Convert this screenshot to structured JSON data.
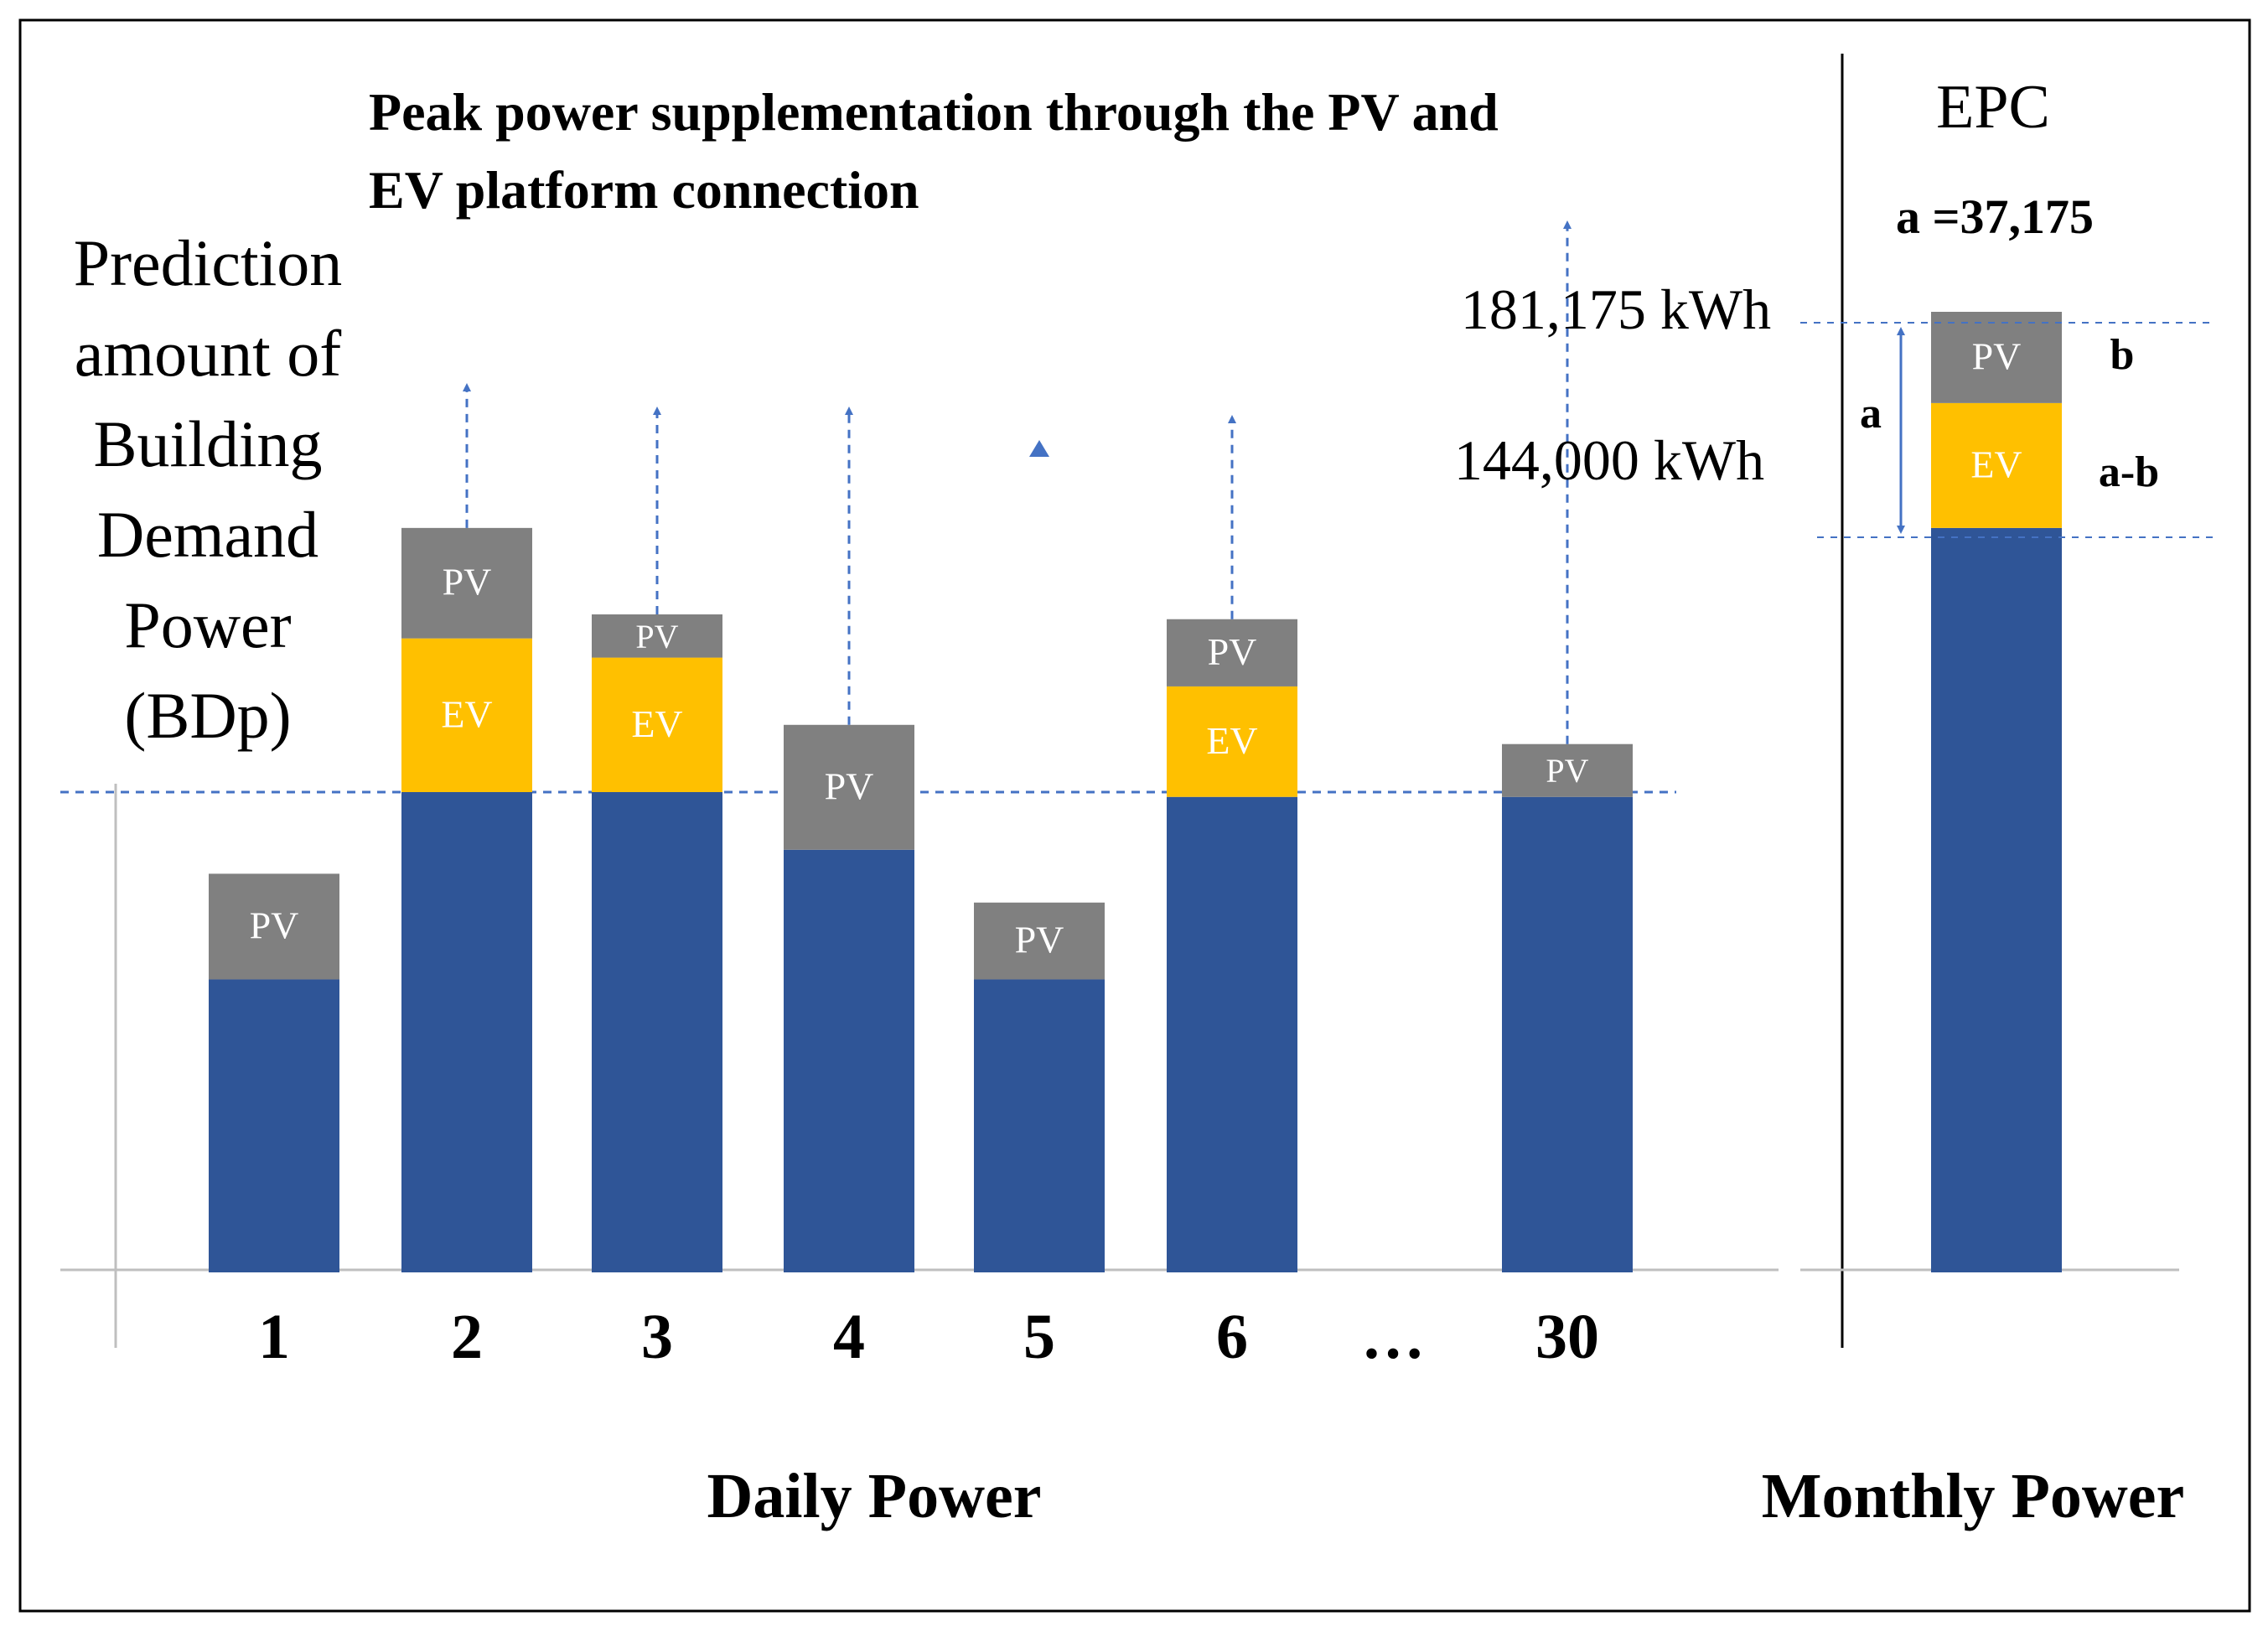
{
  "title": "Peak power supplementation through the PV and EV platform connection",
  "y_axis_label": [
    "Prediction",
    "amount of",
    "Building",
    "Demand",
    "Power",
    "(BDp)"
  ],
  "daily_section_label": "Daily Power",
  "monthly_section_label": "Monthly Power",
  "ellipsis": "…",
  "epc": {
    "heading": "EPC",
    "value_label": "a =37,175",
    "a_label": "a",
    "b_label": "b",
    "a_minus_b_label": "a-b"
  },
  "reference_lines": {
    "upper_label": "181,175 kWh",
    "lower_label": "144,000 kWh"
  },
  "segment_labels": {
    "pv": "PV",
    "ev": "EV"
  },
  "colors": {
    "base": "#2f5597",
    "ev": "#ffc000",
    "pv": "#808080",
    "arrow": "#4472c4",
    "axis": "#bfbfbf",
    "text": "#000000"
  },
  "chart_data": {
    "type": "bar",
    "stacked": true,
    "title": "Peak power supplementation through the PV and EV platform connection",
    "ylabel": "Prediction amount of Building Demand Power (BDp)",
    "xlabel": "Daily Power",
    "units": "relative (peak threshold line = 1.00)",
    "threshold": 1.0,
    "categories": [
      "1",
      "2",
      "3",
      "4",
      "5",
      "6",
      "30"
    ],
    "series": [
      {
        "name": "BDp",
        "values": [
          0.61,
          1.0,
          1.0,
          0.88,
          0.61,
          0.99,
          0.99
        ]
      },
      {
        "name": "EV",
        "values": [
          0,
          0.32,
          0.28,
          0,
          0,
          0.23,
          0
        ]
      },
      {
        "name": "PV",
        "values": [
          0.22,
          0.23,
          0.09,
          0.26,
          0.16,
          0.14,
          0.11
        ]
      }
    ],
    "arrows": [
      false,
      true,
      true,
      true,
      "head-only",
      true,
      true
    ],
    "monthly": {
      "category": "Monthly Power",
      "series": [
        {
          "name": "BDp",
          "value": 1.55
        },
        {
          "name": "EV",
          "value": 0.26
        },
        {
          "name": "PV",
          "value": 0.19
        }
      ]
    }
  }
}
